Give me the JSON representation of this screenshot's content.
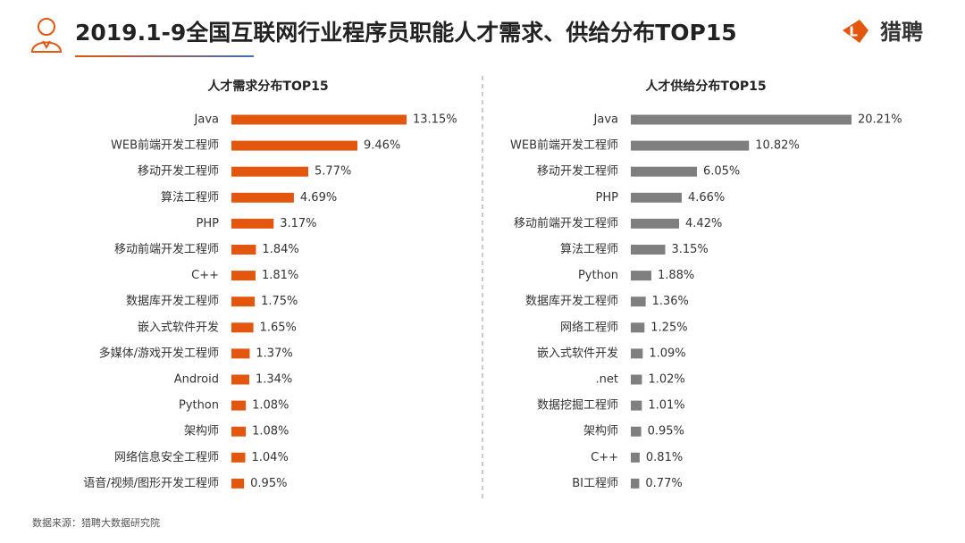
{
  "title": "2019.1-9全国互联网行业程序员职能人才需求、供给分布TOP15",
  "logo_text": "猎聘",
  "source": "数据来源：猎聘大数据研究院",
  "chart_data": [
    {
      "type": "bar",
      "orientation": "horizontal",
      "title": "人才需求分布TOP15",
      "color": "#e2560e",
      "categories": [
        "Java",
        "WEB前端开发工程师",
        "移动开发工程师",
        "算法工程师",
        "PHP",
        "移动前端开发工程师",
        "C++",
        "数据库开发工程师",
        "嵌入式软件开发",
        "多媒体/游戏开发工程师",
        "Android",
        "Python",
        "架构师",
        "网络信息安全工程师",
        "语音/视频/图形开发工程师"
      ],
      "values": [
        13.15,
        9.46,
        5.77,
        4.69,
        3.17,
        1.84,
        1.81,
        1.75,
        1.65,
        1.37,
        1.34,
        1.08,
        1.08,
        1.04,
        0.95
      ],
      "value_labels": [
        "13.15%",
        "9.46%",
        "5.77%",
        "4.69%",
        "3.17%",
        "1.84%",
        "1.81%",
        "1.75%",
        "1.65%",
        "1.37%",
        "1.34%",
        "1.08%",
        "1.08%",
        "1.04%",
        "0.95%"
      ]
    },
    {
      "type": "bar",
      "orientation": "horizontal",
      "title": "人才供给分布TOP15",
      "color": "#7f7f7f",
      "categories": [
        "Java",
        "WEB前端开发工程师",
        "移动开发工程师",
        "PHP",
        "移动前端开发工程师",
        "算法工程师",
        "Python",
        "数据库开发工程师",
        "网络工程师",
        "嵌入式软件开发",
        ".net",
        "数据挖掘工程师",
        "架构师",
        "C++",
        "BI工程师"
      ],
      "values": [
        20.21,
        10.82,
        6.05,
        4.66,
        4.42,
        3.15,
        1.88,
        1.36,
        1.25,
        1.09,
        1.02,
        1.01,
        0.95,
        0.81,
        0.77
      ],
      "value_labels": [
        "20.21%",
        "10.82%",
        "6.05%",
        "4.66%",
        "4.42%",
        "3.15%",
        "1.88%",
        "1.36%",
        "1.25%",
        "1.09%",
        "1.02%",
        "1.01%",
        "0.95%",
        "0.81%",
        "0.77%"
      ]
    }
  ]
}
